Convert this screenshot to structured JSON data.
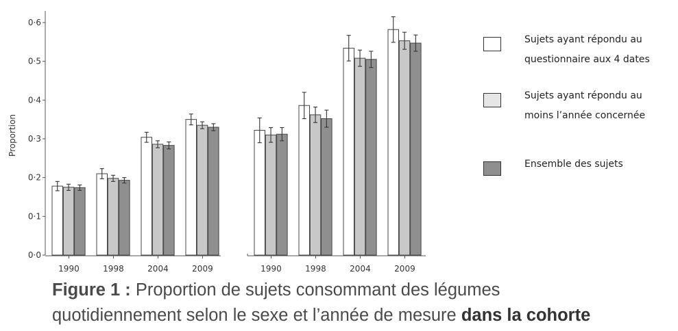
{
  "chart_data": {
    "type": "bar",
    "ylabel": "Proportion",
    "ylim": [
      0,
      0.6
    ],
    "yticks": [
      "0·0",
      "0·1",
      "0·2",
      "0·3",
      "0·4",
      "0·5",
      "0·6"
    ],
    "categories": [
      "1990",
      "1998",
      "2004",
      "2009"
    ],
    "grid": false,
    "legend_position": "right",
    "panels": [
      {
        "series": [
          {
            "name": "Sujets ayant répondu au questionnaire aux 4 dates",
            "values": [
              0.178,
              0.21,
              0.304,
              0.35
            ],
            "errors": [
              0.012,
              0.013,
              0.013,
              0.014
            ]
          },
          {
            "name": "Sujets ayant répondu au moins l’année concernée",
            "values": [
              0.175,
              0.198,
              0.286,
              0.335
            ],
            "errors": [
              0.008,
              0.008,
              0.009,
              0.009
            ]
          },
          {
            "name": "Ensemble des sujets",
            "values": [
              0.174,
              0.193,
              0.283,
              0.33
            ],
            "errors": [
              0.007,
              0.007,
              0.009,
              0.009
            ]
          }
        ]
      },
      {
        "series": [
          {
            "name": "Sujets ayant répondu au questionnaire aux 4 dates",
            "values": [
              0.322,
              0.386,
              0.534,
              0.582
            ],
            "errors": [
              0.032,
              0.034,
              0.033,
              0.033
            ]
          },
          {
            "name": "Sujets ayant répondu au moins l’année concernée",
            "values": [
              0.31,
              0.362,
              0.508,
              0.553
            ],
            "errors": [
              0.019,
              0.02,
              0.021,
              0.022
            ]
          },
          {
            "name": "Ensemble des sujets",
            "values": [
              0.312,
              0.352,
              0.505,
              0.547
            ],
            "errors": [
              0.017,
              0.022,
              0.021,
              0.021
            ]
          }
        ]
      }
    ]
  },
  "colors": {
    "series": [
      "#ffffff",
      "#c8c8c8",
      "#8f8f8f"
    ],
    "stroke": "#444444",
    "error_bar": "#333333",
    "axis": "#555555"
  },
  "legend": {
    "items": [
      {
        "line1": "Sujets ayant répondu au",
        "line2": "questionnaire aux 4 dates",
        "swatch_color": "#ffffff"
      },
      {
        "line1": "Sujets ayant répondu au",
        "line2": "moins l’année concernée",
        "swatch_color": "#e6e6e6"
      },
      {
        "line1": "Ensemble des sujets",
        "line2": "",
        "swatch_color": "#8f8f8f"
      }
    ]
  },
  "caption": {
    "label": "Figure 1 :",
    "text1": " Proportion de sujets consommant des légumes",
    "text2": "quotidiennement selon le sexe et l’année de mesure ",
    "emphasis": "dans la cohorte"
  }
}
